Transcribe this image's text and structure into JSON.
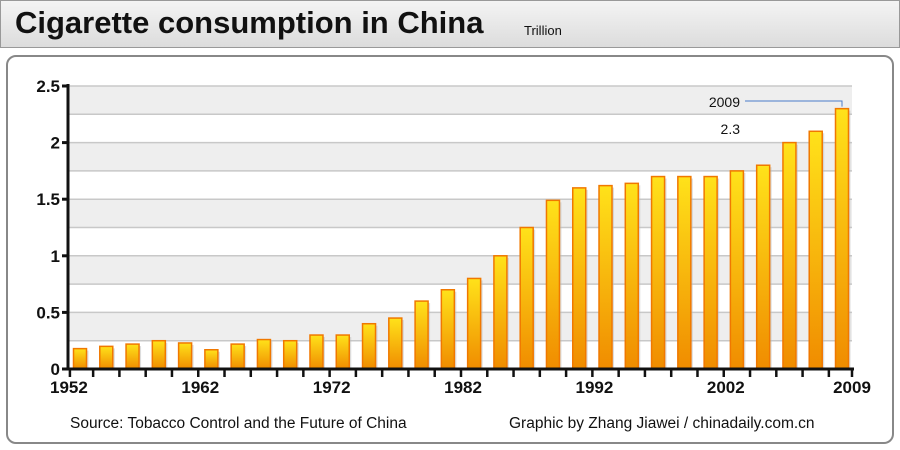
{
  "header": {
    "title": "Cigarette consumption in China",
    "unit": "Trillion"
  },
  "footer": {
    "source": "Source: Tobacco Control and the Future of China",
    "credit": "Graphic by Zhang Jiawei / chinadaily.com.cn"
  },
  "chart_data": {
    "type": "bar",
    "title": "Cigarette consumption in China",
    "ylabel": "Trillion",
    "ylim": [
      0,
      2.5
    ],
    "yticks": [
      "0",
      "0.5",
      "1",
      "1.5",
      "2",
      "2.5"
    ],
    "xtick_labels": [
      "1952",
      "1962",
      "1972",
      "1982",
      "1992",
      "2002",
      "2009"
    ],
    "categories": [
      1952,
      1954,
      1956,
      1958,
      1960,
      1962,
      1964,
      1966,
      1968,
      1970,
      1972,
      1974,
      1976,
      1978,
      1980,
      1982,
      1984,
      1986,
      1988,
      1990,
      1992,
      1994,
      1996,
      1998,
      2000,
      2002,
      2004,
      2006,
      2008,
      2009
    ],
    "values": [
      0.18,
      0.2,
      0.22,
      0.25,
      0.23,
      0.17,
      0.22,
      0.26,
      0.25,
      0.3,
      0.3,
      0.4,
      0.45,
      0.6,
      0.7,
      0.8,
      1.0,
      1.25,
      1.49,
      1.6,
      1.62,
      1.64,
      1.7,
      1.7,
      1.7,
      1.75,
      1.8,
      2.0,
      2.1,
      2.3
    ],
    "annotation": {
      "year": "2009",
      "value": "2.3"
    },
    "grid": true,
    "colors": {
      "bar_top": "#ffe21a",
      "bar_bottom": "#f08c00",
      "bar_edge": "#f07800",
      "band": "#eeeeee"
    }
  }
}
